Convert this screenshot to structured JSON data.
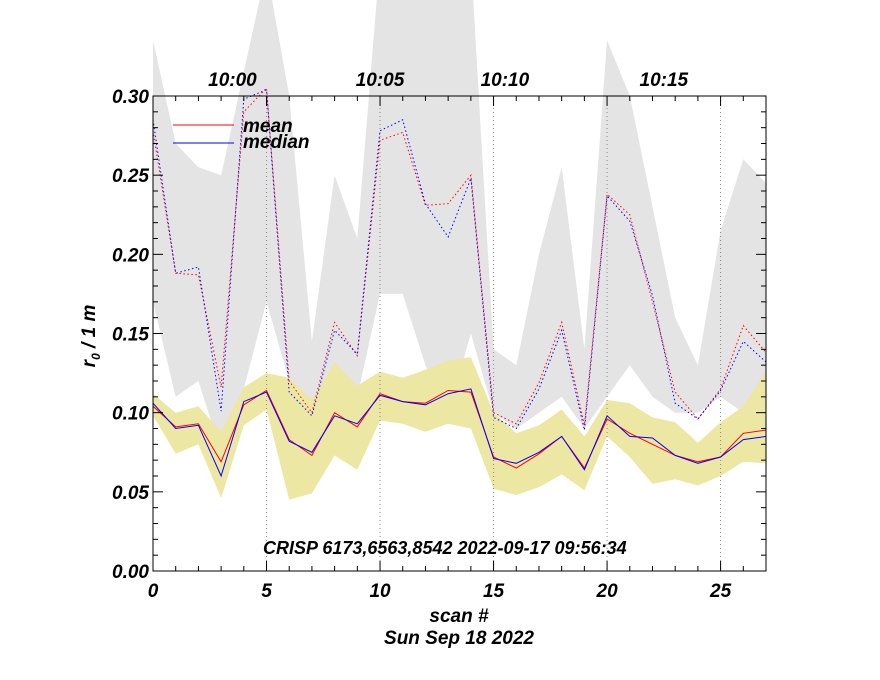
{
  "chart_data": {
    "type": "line",
    "xlabel": "scan #",
    "ylabel_main": "r",
    "ylabel_sub": "0",
    "ylabel_rest": " / 1 m",
    "date_label": "Sun Sep 18 2022",
    "annotation": "CRISP 6173,6563,8542 2022-09-17 09:56:34",
    "xlim": [
      0,
      27
    ],
    "ylim": [
      0.0,
      0.3
    ],
    "xticks": [
      0,
      5,
      10,
      15,
      20,
      25
    ],
    "xtick_labels": [
      "0",
      "5",
      "10",
      "15",
      "20",
      "25"
    ],
    "yticks": [
      0.0,
      0.05,
      0.1,
      0.15,
      0.2,
      0.25,
      0.3
    ],
    "ytick_labels": [
      "0.00",
      "0.05",
      "0.10",
      "0.15",
      "0.20",
      "0.25",
      "0.30"
    ],
    "top_time_labels": [
      {
        "x": 3.5,
        "text": "10:00"
      },
      {
        "x": 10.0,
        "text": "10:05"
      },
      {
        "x": 15.5,
        "text": "10:10"
      },
      {
        "x": 22.5,
        "text": "10:15"
      }
    ],
    "time_gridlines_x": [
      5,
      10,
      15,
      20,
      25
    ],
    "legend": [
      {
        "name": "mean",
        "color": "#ff0000"
      },
      {
        "name": "median",
        "color": "#0000ff"
      }
    ],
    "x": [
      0,
      1,
      2,
      3,
      4,
      5,
      6,
      7,
      8,
      9,
      10,
      11,
      12,
      13,
      14,
      15,
      16,
      17,
      18,
      19,
      20,
      21,
      22,
      23,
      24,
      25,
      26,
      27
    ],
    "low_mean": [
      0.104,
      0.091,
      0.093,
      0.069,
      0.105,
      0.114,
      0.083,
      0.073,
      0.1,
      0.091,
      0.112,
      0.107,
      0.106,
      0.114,
      0.113,
      0.072,
      0.065,
      0.074,
      0.085,
      0.065,
      0.096,
      0.087,
      0.08,
      0.073,
      0.069,
      0.072,
      0.087,
      0.089
    ],
    "low_median": [
      0.106,
      0.09,
      0.092,
      0.06,
      0.107,
      0.113,
      0.082,
      0.075,
      0.098,
      0.093,
      0.111,
      0.107,
      0.105,
      0.112,
      0.115,
      0.071,
      0.068,
      0.075,
      0.085,
      0.064,
      0.098,
      0.085,
      0.084,
      0.073,
      0.068,
      0.072,
      0.083,
      0.085
    ],
    "low_band_upper": [
      0.112,
      0.1,
      0.104,
      0.088,
      0.116,
      0.125,
      0.122,
      0.108,
      0.132,
      0.117,
      0.126,
      0.122,
      0.127,
      0.133,
      0.135,
      0.1,
      0.087,
      0.092,
      0.102,
      0.085,
      0.108,
      0.106,
      0.097,
      0.094,
      0.081,
      0.094,
      0.104,
      0.126
    ],
    "low_band_lower": [
      0.098,
      0.074,
      0.08,
      0.046,
      0.092,
      0.102,
      0.045,
      0.049,
      0.073,
      0.064,
      0.095,
      0.093,
      0.088,
      0.093,
      0.09,
      0.052,
      0.048,
      0.053,
      0.061,
      0.051,
      0.085,
      0.072,
      0.055,
      0.058,
      0.054,
      0.06,
      0.069,
      0.068
    ],
    "high_mean": [
      0.278,
      0.188,
      0.187,
      0.116,
      0.29,
      0.305,
      0.12,
      0.1,
      0.157,
      0.136,
      0.272,
      0.277,
      0.231,
      0.232,
      0.25,
      0.1,
      0.093,
      0.119,
      0.157,
      0.092,
      0.238,
      0.225,
      0.17,
      0.113,
      0.096,
      0.115,
      0.155,
      0.138
    ],
    "high_median": [
      0.285,
      0.188,
      0.192,
      0.101,
      0.298,
      0.304,
      0.113,
      0.098,
      0.152,
      0.137,
      0.278,
      0.285,
      0.232,
      0.211,
      0.248,
      0.097,
      0.09,
      0.115,
      0.152,
      0.089,
      0.237,
      0.221,
      0.174,
      0.106,
      0.096,
      0.114,
      0.145,
      0.132
    ],
    "high_band_upper": [
      0.335,
      0.27,
      0.255,
      0.25,
      0.315,
      0.38,
      0.3,
      0.145,
      0.25,
      0.21,
      0.385,
      0.385,
      0.385,
      0.375,
      0.385,
      0.14,
      0.13,
      0.2,
      0.255,
      0.14,
      0.335,
      0.3,
      0.23,
      0.16,
      0.13,
      0.215,
      0.26,
      0.245
    ],
    "high_band_lower": [
      0.17,
      0.11,
      0.12,
      0.075,
      0.115,
      0.17,
      0.12,
      0.1,
      0.115,
      0.11,
      0.175,
      0.175,
      0.13,
      0.1,
      0.15,
      0.1,
      0.09,
      0.1,
      0.11,
      0.09,
      0.11,
      0.13,
      0.11,
      0.1,
      0.1,
      0.11,
      0.1,
      0.095
    ],
    "colors": {
      "mean": "#ff0000",
      "median": "#0000ff",
      "low_band": "#ede7a4",
      "high_band": "#e4e4e4",
      "axis": "#000000",
      "time_grid": "#888888"
    }
  }
}
